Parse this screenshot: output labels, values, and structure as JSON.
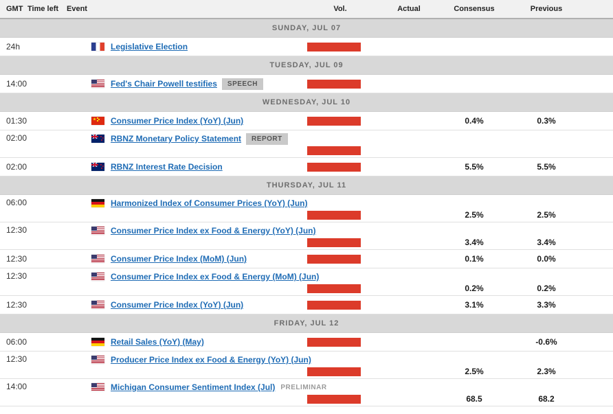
{
  "header": {
    "gmt": "GMT",
    "time_left": "Time left",
    "event": "Event",
    "vol": "Vol.",
    "actual": "Actual",
    "consensus": "Consensus",
    "previous": "Previous"
  },
  "colors": {
    "link": "#1f6cb5",
    "volume-bar": "#dc3b2a",
    "separator-bg": "#d8d8d8",
    "separator-text": "#6e6e6e",
    "badge-bg": "#c9c9c9",
    "badge-text": "#555555",
    "tag-text": "#9a9a9a",
    "header-bg": "#f1f1f1",
    "header-border": "#b0b0b0",
    "row-border": "#e0e0e0",
    "value-text": "#1a1a1a"
  },
  "sections": [
    {
      "date": "SUNDAY, JUL 07",
      "events": [
        {
          "gmt": "24h",
          "country_code": "fr",
          "flag_icon": "france-flag-icon",
          "title": "Legislative Election",
          "badge": "",
          "tag": "",
          "vol_bar": true,
          "actual": "",
          "consensus": "",
          "previous": "",
          "two_line": false
        }
      ]
    },
    {
      "date": "TUESDAY, JUL 09",
      "events": [
        {
          "gmt": "14:00",
          "country_code": "us",
          "flag_icon": "us-flag-icon",
          "title": "Fed's Chair Powell testifies",
          "badge": "SPEECH",
          "tag": "",
          "vol_bar": true,
          "actual": "",
          "consensus": "",
          "previous": "",
          "two_line": false
        }
      ]
    },
    {
      "date": "WEDNESDAY, JUL 10",
      "events": [
        {
          "gmt": "01:30",
          "country_code": "cn",
          "flag_icon": "china-flag-icon",
          "title": "Consumer Price Index (YoY) (Jun)",
          "badge": "",
          "tag": "",
          "vol_bar": true,
          "actual": "",
          "consensus": "0.4%",
          "previous": "0.3%",
          "two_line": false
        },
        {
          "gmt": "02:00",
          "country_code": "nz",
          "flag_icon": "new-zealand-flag-icon",
          "title": "RBNZ Monetary Policy Statement",
          "badge": "REPORT",
          "tag": "",
          "vol_bar": true,
          "actual": "",
          "consensus": "",
          "previous": "",
          "two_line": true
        },
        {
          "gmt": "02:00",
          "country_code": "nz",
          "flag_icon": "new-zealand-flag-icon",
          "title": "RBNZ Interest Rate Decision",
          "badge": "",
          "tag": "",
          "vol_bar": true,
          "actual": "",
          "consensus": "5.5%",
          "previous": "5.5%",
          "two_line": false
        }
      ]
    },
    {
      "date": "THURSDAY, JUL 11",
      "events": [
        {
          "gmt": "06:00",
          "country_code": "de",
          "flag_icon": "germany-flag-icon",
          "title": "Harmonized Index of Consumer Prices (YoY) (Jun)",
          "badge": "",
          "tag": "",
          "vol_bar": true,
          "actual": "",
          "consensus": "2.5%",
          "previous": "2.5%",
          "two_line": true
        },
        {
          "gmt": "12:30",
          "country_code": "us",
          "flag_icon": "us-flag-icon",
          "title": "Consumer Price Index ex Food & Energy (YoY) (Jun)",
          "badge": "",
          "tag": "",
          "vol_bar": true,
          "actual": "",
          "consensus": "3.4%",
          "previous": "3.4%",
          "two_line": true
        },
        {
          "gmt": "12:30",
          "country_code": "us",
          "flag_icon": "us-flag-icon",
          "title": "Consumer Price Index (MoM) (Jun)",
          "badge": "",
          "tag": "",
          "vol_bar": true,
          "actual": "",
          "consensus": "0.1%",
          "previous": "0.0%",
          "two_line": false
        },
        {
          "gmt": "12:30",
          "country_code": "us",
          "flag_icon": "us-flag-icon",
          "title": "Consumer Price Index ex Food & Energy (MoM) (Jun)",
          "badge": "",
          "tag": "",
          "vol_bar": true,
          "actual": "",
          "consensus": "0.2%",
          "previous": "0.2%",
          "two_line": true
        },
        {
          "gmt": "12:30",
          "country_code": "us",
          "flag_icon": "us-flag-icon",
          "title": "Consumer Price Index (YoY) (Jun)",
          "badge": "",
          "tag": "",
          "vol_bar": true,
          "actual": "",
          "consensus": "3.1%",
          "previous": "3.3%",
          "two_line": false
        }
      ]
    },
    {
      "date": "FRIDAY, JUL 12",
      "events": [
        {
          "gmt": "06:00",
          "country_code": "de",
          "flag_icon": "germany-flag-icon",
          "title": "Retail Sales (YoY) (May)",
          "badge": "",
          "tag": "",
          "vol_bar": true,
          "actual": "",
          "consensus": "",
          "previous": "-0.6%",
          "two_line": false
        },
        {
          "gmt": "12:30",
          "country_code": "us",
          "flag_icon": "us-flag-icon",
          "title": "Producer Price Index ex Food & Energy (YoY) (Jun)",
          "badge": "",
          "tag": "",
          "vol_bar": true,
          "actual": "",
          "consensus": "2.5%",
          "previous": "2.3%",
          "two_line": true
        },
        {
          "gmt": "14:00",
          "country_code": "us",
          "flag_icon": "us-flag-icon",
          "title": "Michigan Consumer Sentiment Index (Jul)",
          "badge": "",
          "tag": "PRELIMINAR",
          "vol_bar": true,
          "actual": "",
          "consensus": "68.5",
          "previous": "68.2",
          "two_line": true
        }
      ]
    }
  ]
}
